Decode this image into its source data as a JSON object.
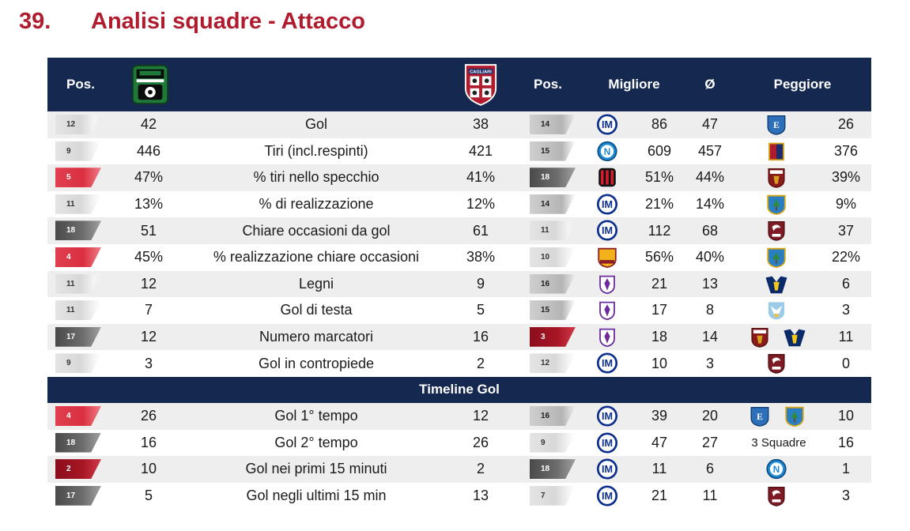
{
  "page": {
    "number": "39.",
    "title": "Analisi squadre - Attacco"
  },
  "header": {
    "pos_label": "Pos.",
    "team1_logo": "sassuolo-crest",
    "team2_logo": "cagliari-crest",
    "team2_logo_text": "CAGLIARI",
    "pos2_label": "Pos.",
    "best_label": "Migliore",
    "avg_label": "Ø",
    "worst_label": "Peggiore"
  },
  "section": {
    "label": "Timeline Gol"
  },
  "rows": [
    {
      "pos1": "12",
      "pos1_style": "light",
      "v1": "42",
      "label": "Gol",
      "v2": "38",
      "pos2": "14",
      "pos2_style": "mid",
      "best_team": "inter",
      "best": "86",
      "avg": "47",
      "worst_team": [
        "empoli"
      ],
      "worst": "26"
    },
    {
      "pos1": "9",
      "pos1_style": "light",
      "v1": "446",
      "label": "Tiri (incl.respinti)",
      "v2": "421",
      "pos2": "15",
      "pos2_style": "mid",
      "best_team": "napoli",
      "best": "609",
      "avg": "457",
      "worst_team": [
        "genoa"
      ],
      "worst": "376"
    },
    {
      "pos1": "5",
      "pos1_style": "red",
      "v1": "47%",
      "label": "% tiri nello specchio",
      "v2": "41%",
      "pos2": "18",
      "pos2_style": "dark",
      "best_team": "milan",
      "best": "51%",
      "avg": "44%",
      "worst_team": [
        "torino"
      ],
      "worst": "39%"
    },
    {
      "pos1": "11",
      "pos1_style": "light",
      "v1": "13%",
      "label": "% di realizzazione",
      "v2": "12%",
      "pos2": "14",
      "pos2_style": "mid",
      "best_team": "inter",
      "best": "21%",
      "avg": "14%",
      "worst_team": [
        "lecce"
      ],
      "worst": "9%"
    },
    {
      "pos1": "18",
      "pos1_style": "dark",
      "v1": "51",
      "label": "Chiare occasioni da gol",
      "v2": "61",
      "pos2": "11",
      "pos2_style": "light",
      "best_team": "inter",
      "best": "112",
      "avg": "68",
      "worst_team": [
        "salernitana"
      ],
      "worst": "37"
    },
    {
      "pos1": "4",
      "pos1_style": "red",
      "v1": "45%",
      "label": "% realizzazione chiare occasioni",
      "v2": "38%",
      "pos2": "10",
      "pos2_style": "light",
      "best_team": "roma",
      "best": "56%",
      "avg": "40%",
      "worst_team": [
        "lecce"
      ],
      "worst": "22%"
    },
    {
      "pos1": "11",
      "pos1_style": "light",
      "v1": "12",
      "label": "Legni",
      "v2": "9",
      "pos2": "16",
      "pos2_style": "mid",
      "best_team": "fiorentina",
      "best": "21",
      "avg": "13",
      "worst_team": [
        "verona"
      ],
      "worst": "6"
    },
    {
      "pos1": "11",
      "pos1_style": "light",
      "v1": "7",
      "label": "Gol di testa",
      "v2": "5",
      "pos2": "15",
      "pos2_style": "mid",
      "best_team": "fiorentina",
      "best": "17",
      "avg": "8",
      "worst_team": [
        "lazio"
      ],
      "worst": "3"
    },
    {
      "pos1": "17",
      "pos1_style": "dark",
      "v1": "12",
      "label": "Numero marcatori",
      "v2": "16",
      "pos2": "3",
      "pos2_style": "darkred",
      "best_team": "fiorentina",
      "best": "18",
      "avg": "14",
      "worst_team": [
        "torino",
        "verona"
      ],
      "worst": "11"
    },
    {
      "pos1": "9",
      "pos1_style": "light",
      "v1": "3",
      "label": "Gol in contropiede",
      "v2": "2",
      "pos2": "12",
      "pos2_style": "light",
      "best_team": "inter",
      "best": "10",
      "avg": "3",
      "worst_team": [
        "salernitana"
      ],
      "worst": "0"
    }
  ],
  "timeline_rows": [
    {
      "pos1": "4",
      "pos1_style": "red",
      "v1": "26",
      "label": "Gol 1° tempo",
      "v2": "12",
      "pos2": "16",
      "pos2_style": "mid",
      "best_team": "inter",
      "best": "39",
      "avg": "20",
      "worst_team": [
        "empoli",
        "lecce"
      ],
      "worst": "10"
    },
    {
      "pos1": "18",
      "pos1_style": "dark",
      "v1": "16",
      "label": "Gol 2° tempo",
      "v2": "26",
      "pos2": "9",
      "pos2_style": "light",
      "best_team": "inter",
      "best": "47",
      "avg": "27",
      "worst_text": "3 Squadre",
      "worst": "16"
    },
    {
      "pos1": "2",
      "pos1_style": "darkred",
      "v1": "10",
      "label": "Gol nei primi 15 minuti",
      "v2": "2",
      "pos2": "18",
      "pos2_style": "dark",
      "best_team": "inter",
      "best": "11",
      "avg": "6",
      "worst_team": [
        "napoli"
      ],
      "worst": "1"
    },
    {
      "pos1": "17",
      "pos1_style": "dark",
      "v1": "5",
      "label": "Gol negli ultimi 15 min",
      "v2": "13",
      "pos2": "7",
      "pos2_style": "light",
      "best_team": "inter",
      "best": "21",
      "avg": "11",
      "worst_team": [
        "salernitana"
      ],
      "worst": "3"
    }
  ],
  "colors": {
    "title": "#b01c2e",
    "header_bg": "#142850",
    "alt_row": "#eeeeee"
  }
}
